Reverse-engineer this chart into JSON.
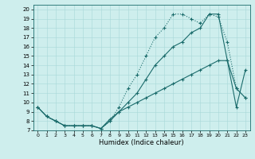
{
  "xlabel": "Humidex (Indice chaleur)",
  "bg_color": "#ceeeed",
  "line_color": "#1a6b6b",
  "grid_color": "#a8d8d8",
  "xlim": [
    -0.5,
    23.5
  ],
  "ylim": [
    7,
    20.5
  ],
  "xticks": [
    0,
    1,
    2,
    3,
    4,
    5,
    6,
    7,
    8,
    9,
    10,
    11,
    12,
    13,
    14,
    15,
    16,
    17,
    18,
    19,
    20,
    21,
    22,
    23
  ],
  "yticks": [
    7,
    8,
    9,
    10,
    11,
    12,
    13,
    14,
    15,
    16,
    17,
    18,
    19,
    20
  ],
  "series1_x": [
    0,
    1,
    2,
    3,
    4,
    5,
    6,
    7,
    8,
    9,
    10,
    11,
    12,
    13,
    14,
    15,
    16,
    17,
    18,
    19,
    20,
    21,
    22,
    23
  ],
  "series1_y": [
    9.5,
    8.5,
    8.0,
    7.5,
    7.5,
    7.5,
    7.5,
    7.2,
    8.0,
    9.0,
    9.5,
    10.0,
    10.5,
    11.0,
    11.5,
    12.0,
    12.5,
    13.0,
    13.5,
    14.0,
    14.5,
    14.5,
    9.5,
    13.5
  ],
  "series2_x": [
    0,
    1,
    2,
    3,
    4,
    5,
    6,
    7,
    8,
    9,
    10,
    11,
    12,
    13,
    14,
    15,
    16,
    17,
    18,
    19,
    20,
    21,
    22,
    23
  ],
  "series2_y": [
    9.5,
    8.5,
    8.0,
    7.5,
    7.5,
    7.5,
    7.5,
    7.2,
    8.0,
    9.5,
    11.5,
    13.0,
    15.0,
    17.0,
    18.0,
    19.5,
    19.5,
    19.0,
    18.5,
    19.5,
    19.2,
    16.5,
    11.5,
    10.5
  ],
  "series3_x": [
    0,
    1,
    2,
    3,
    4,
    5,
    6,
    7,
    8,
    9,
    10,
    11,
    12,
    13,
    14,
    15,
    16,
    17,
    18,
    19,
    20,
    21,
    22,
    23
  ],
  "series3_y": [
    9.5,
    8.5,
    8.0,
    7.5,
    7.5,
    7.5,
    7.5,
    7.2,
    8.2,
    9.0,
    10.0,
    11.0,
    12.5,
    14.0,
    15.0,
    16.0,
    16.5,
    17.5,
    18.0,
    19.5,
    19.5,
    14.5,
    11.5,
    10.5
  ]
}
